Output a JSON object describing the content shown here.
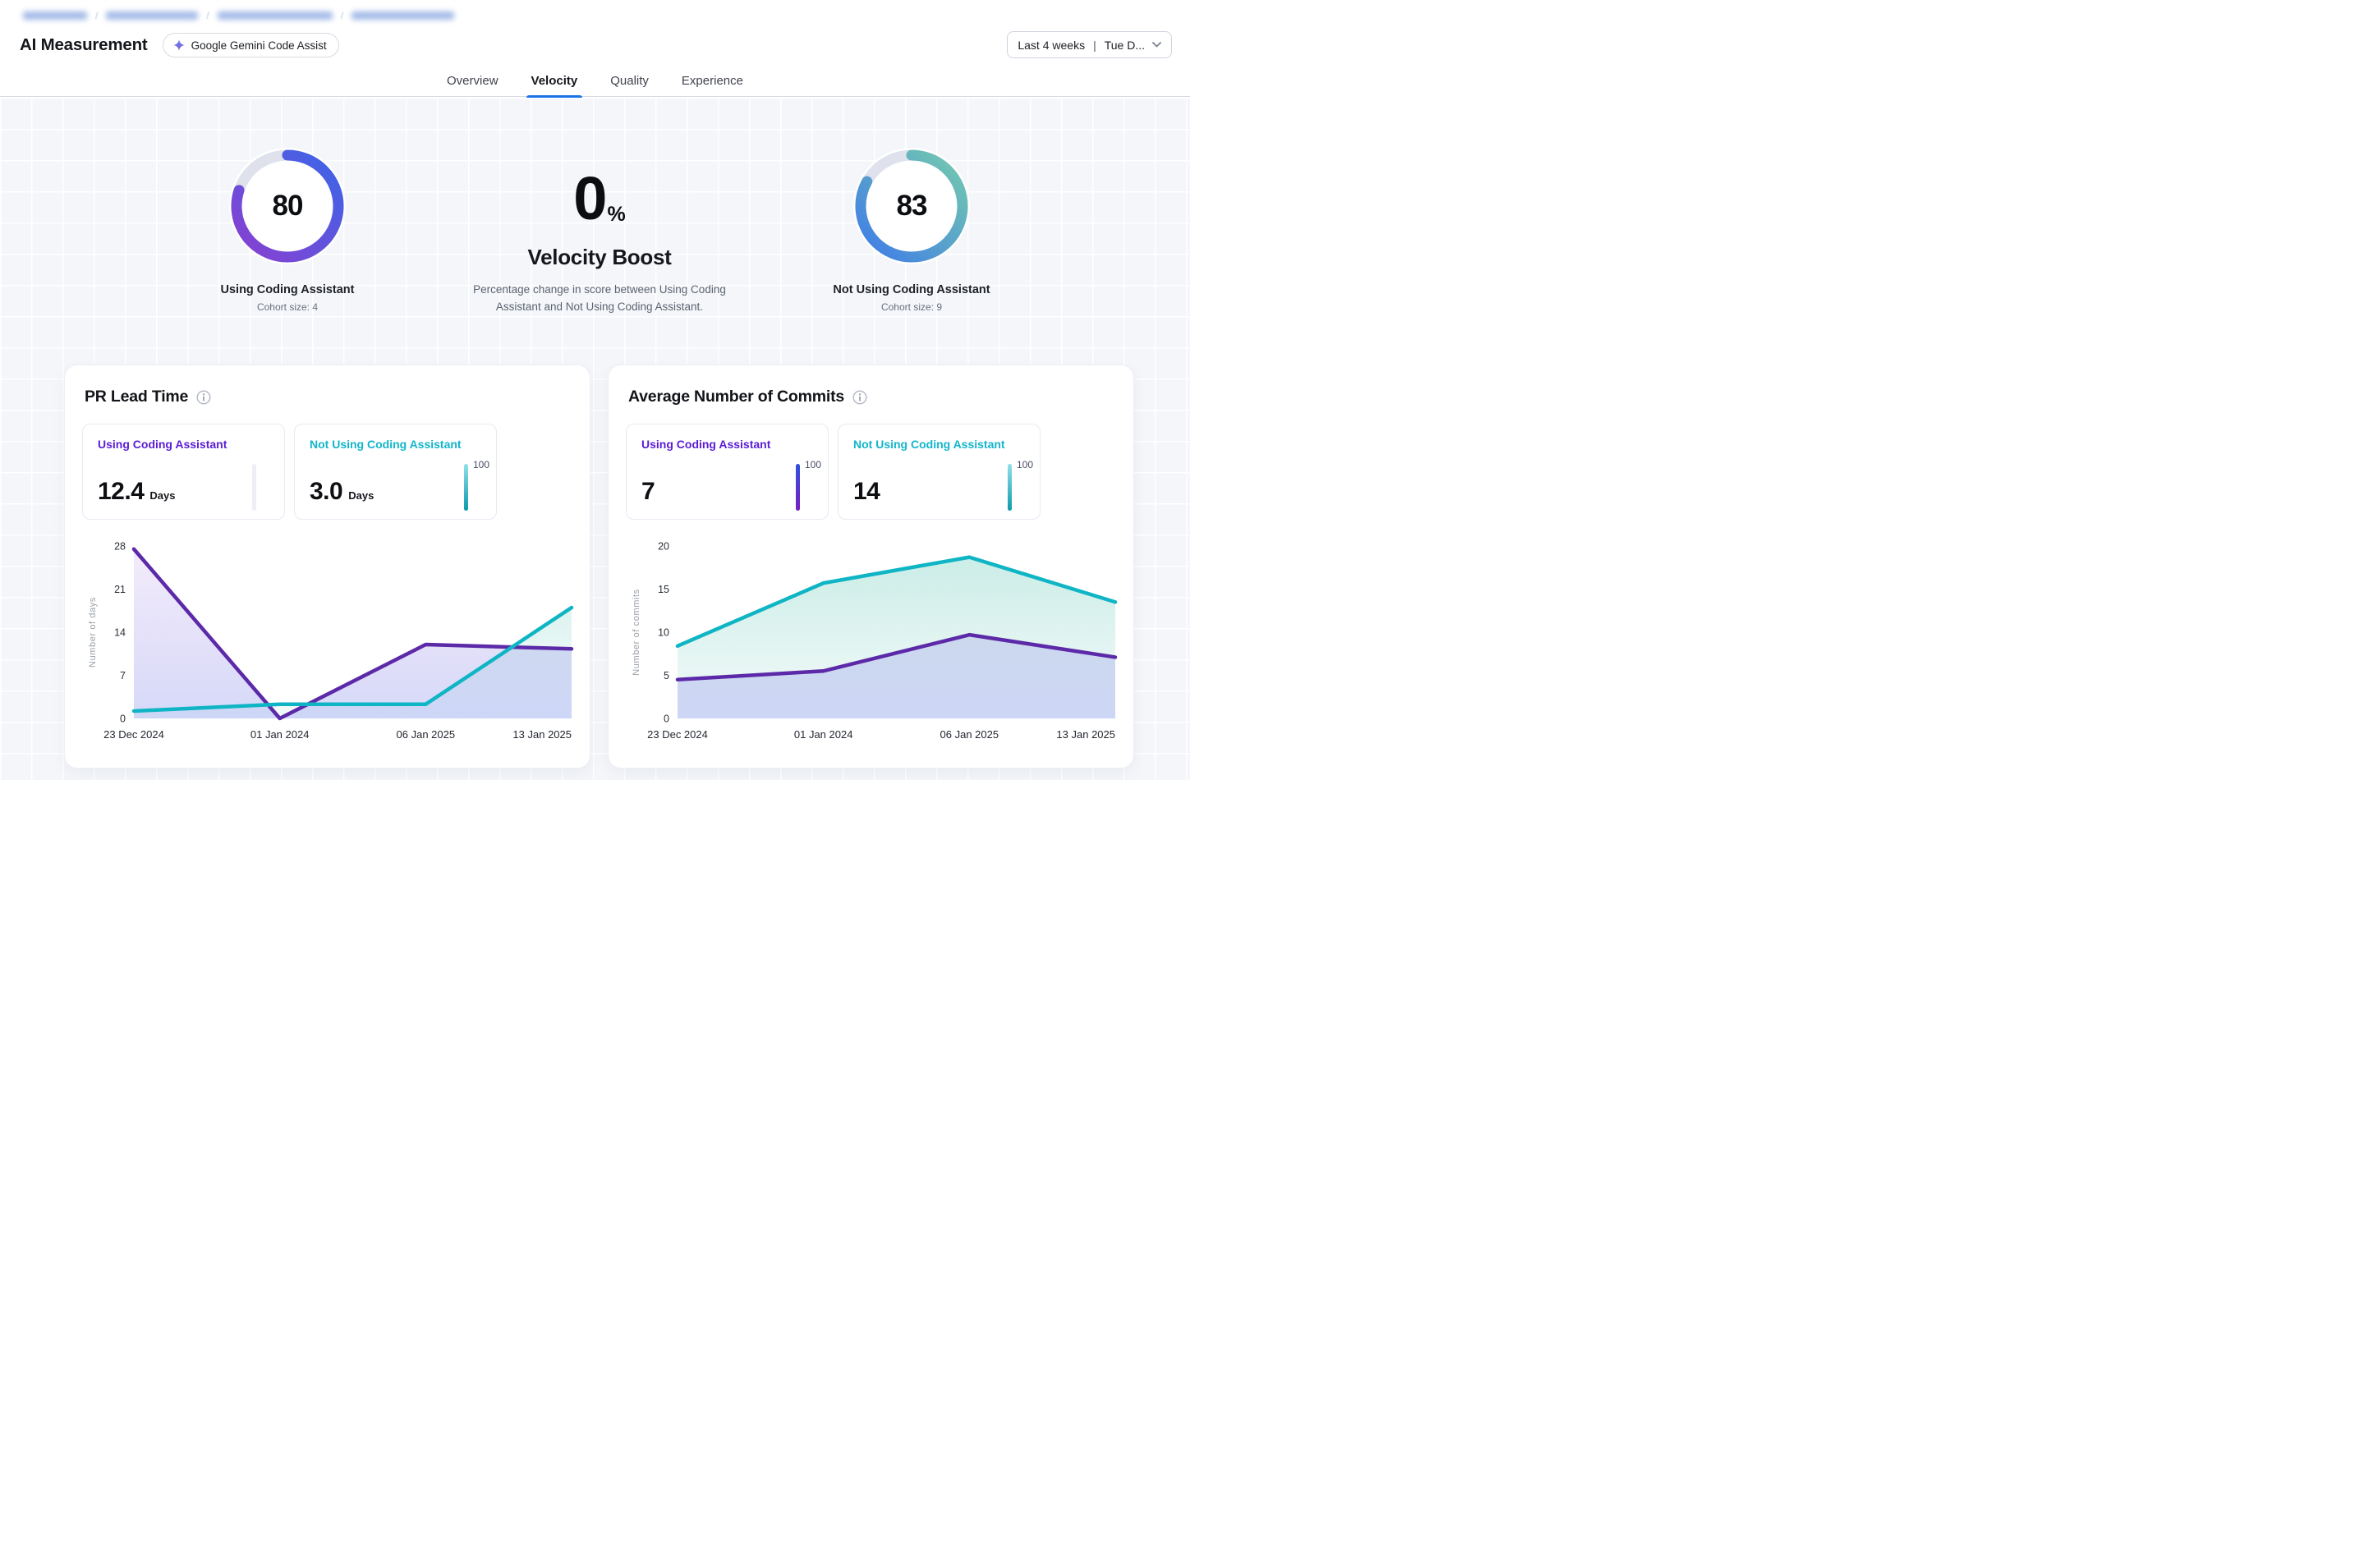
{
  "breadcrumb": {
    "redacted": true,
    "segment_count": 4,
    "separator": "/"
  },
  "header": {
    "title": "AI Measurement",
    "badge": {
      "label": "Google Gemini Code Assist",
      "icon": "gemini-star-icon"
    }
  },
  "date_range": {
    "label": "Last 4 weeks",
    "divider": "|",
    "detail": "Tue D...",
    "icon": "chevron-down-icon"
  },
  "tabs": [
    {
      "label": "Overview",
      "active": false
    },
    {
      "label": "Velocity",
      "active": true
    },
    {
      "label": "Quality",
      "active": false
    },
    {
      "label": "Experience",
      "active": false
    }
  ],
  "summary": {
    "left_gauge": {
      "value": "80",
      "percent": 80,
      "label": "Using Coding Assistant",
      "cohort": "Cohort size: 4",
      "color_start": "#8a3fd1",
      "color_end": "#3b66e8",
      "track_color": "#dfe2ec"
    },
    "boost": {
      "value": "0",
      "unit": "%",
      "title": "Velocity Boost",
      "description": "Percentage change in score between Using Coding Assistant and Not Using Coding Assistant."
    },
    "right_gauge": {
      "value": "83",
      "percent": 83,
      "label": "Not Using Coding Assistant",
      "cohort": "Cohort size: 9",
      "color_start": "#3e7be8",
      "color_end": "#74cbae",
      "track_color": "#dfe2ec"
    }
  },
  "cards": [
    {
      "title": "PR Lead Time",
      "stats": [
        {
          "label": "Using Coding Assistant",
          "color": "#5a1bd6",
          "value": "12.4",
          "unit": "Days",
          "bar": {
            "color": "#edeff5"
          }
        },
        {
          "label": "Not Using Coding Assistant",
          "color": "#12b5cb",
          "value": "3.0",
          "unit": "Days",
          "bar": {
            "from": "#93e0e9",
            "to": "#0d9aae"
          },
          "scale_label": "100"
        }
      ]
    },
    {
      "title": "Average Number of Commits",
      "stats": [
        {
          "label": "Using Coding Assistant",
          "color": "#5a1bd6",
          "value": "7",
          "unit": "",
          "bar": {
            "from": "#2f52e0",
            "to": "#7a1fc0"
          },
          "scale_label": "100"
        },
        {
          "label": "Not Using Coding Assistant",
          "color": "#12b5cb",
          "value": "14",
          "unit": "",
          "bar": {
            "from": "#93e0e9",
            "to": "#0d9aae"
          },
          "scale_label": "100"
        }
      ]
    }
  ],
  "chart_data": [
    {
      "type": "area",
      "title": "PR Lead Time",
      "x": [
        "23 Dec 2024",
        "01 Jan 2024",
        "06 Jan 2025",
        "13 Jan 2025"
      ],
      "ylabel": "Number of days",
      "yticks": [
        0,
        7,
        14,
        21,
        28
      ],
      "ylim": [
        0,
        28
      ],
      "grid": false,
      "legend_position": "none",
      "series": [
        {
          "name": "Using Coding Assistant",
          "color": "#5c2aa8",
          "fill_from": "rgba(130,80,215,0.10)",
          "fill_to": "rgba(105,120,235,0.28)",
          "values": [
            27.5,
            0,
            12,
            11.3
          ]
        },
        {
          "name": "Not Using Coding Assistant",
          "color": "#0fb5c4",
          "fill_from": "rgba(30,175,150,0.20)",
          "fill_to": "rgba(30,175,160,0.05)",
          "values": [
            1.2,
            2.3,
            2.3,
            18
          ]
        }
      ]
    },
    {
      "type": "area",
      "title": "Average Number of Commits",
      "x": [
        "23 Dec 2024",
        "01 Jan 2024",
        "06 Jan 2025",
        "13 Jan 2025"
      ],
      "ylabel": "Number of commits",
      "yticks": [
        0,
        5,
        10,
        15,
        20
      ],
      "ylim": [
        0,
        20
      ],
      "grid": false,
      "legend_position": "none",
      "series": [
        {
          "name": "Using Coding Assistant",
          "color": "#5c2aa8",
          "fill_from": "rgba(130,80,215,0.10)",
          "fill_to": "rgba(105,120,235,0.28)",
          "values": [
            4.5,
            5.5,
            9.7,
            7.1
          ]
        },
        {
          "name": "Not Using Coding Assistant",
          "color": "#0fb5c4",
          "fill_from": "rgba(30,175,150,0.24)",
          "fill_to": "rgba(30,175,150,0.05)",
          "values": [
            8.4,
            15.7,
            18.7,
            13.5
          ]
        }
      ]
    }
  ],
  "colors": {
    "accent_blue": "#1a73e8",
    "purple": "#5a1bd6",
    "teal": "#12b5cb",
    "content_bg": "#f4f6fa"
  }
}
